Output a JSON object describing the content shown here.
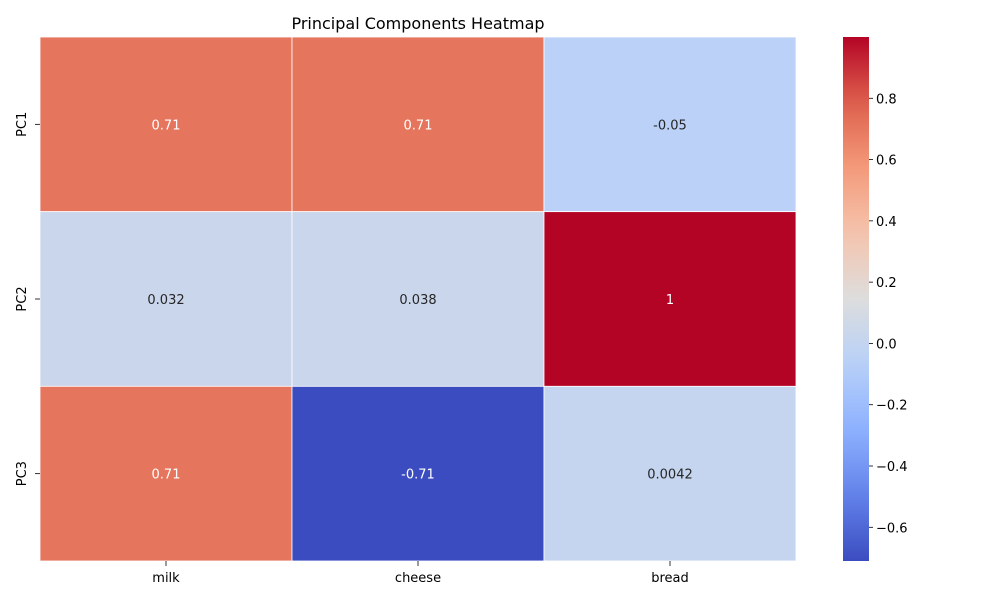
{
  "chart_data": {
    "type": "heatmap",
    "title": "Principal Components Heatmap",
    "xlabel": "",
    "ylabel": "",
    "columns": [
      "milk",
      "cheese",
      "bread"
    ],
    "rows": [
      "PC1",
      "PC2",
      "PC3"
    ],
    "values": [
      [
        0.71,
        0.71,
        -0.05
      ],
      [
        0.032,
        0.038,
        1.0
      ],
      [
        0.71,
        -0.71,
        0.0042
      ]
    ],
    "annotations": [
      [
        "0.71",
        "0.71",
        "-0.05"
      ],
      [
        "0.032",
        "0.038",
        "1"
      ],
      [
        "0.71",
        "-0.71",
        "0.0042"
      ]
    ],
    "colormap": "coolwarm",
    "colorbar": {
      "vmin": -0.71,
      "vmax": 1.0,
      "ticks": [
        -0.6,
        -0.4,
        -0.2,
        0.0,
        0.2,
        0.4,
        0.6,
        0.8
      ],
      "tick_labels": [
        "−0.6",
        "−0.4",
        "−0.2",
        "0.0",
        "0.2",
        "0.4",
        "0.6",
        "0.8"
      ]
    },
    "grid": false
  }
}
